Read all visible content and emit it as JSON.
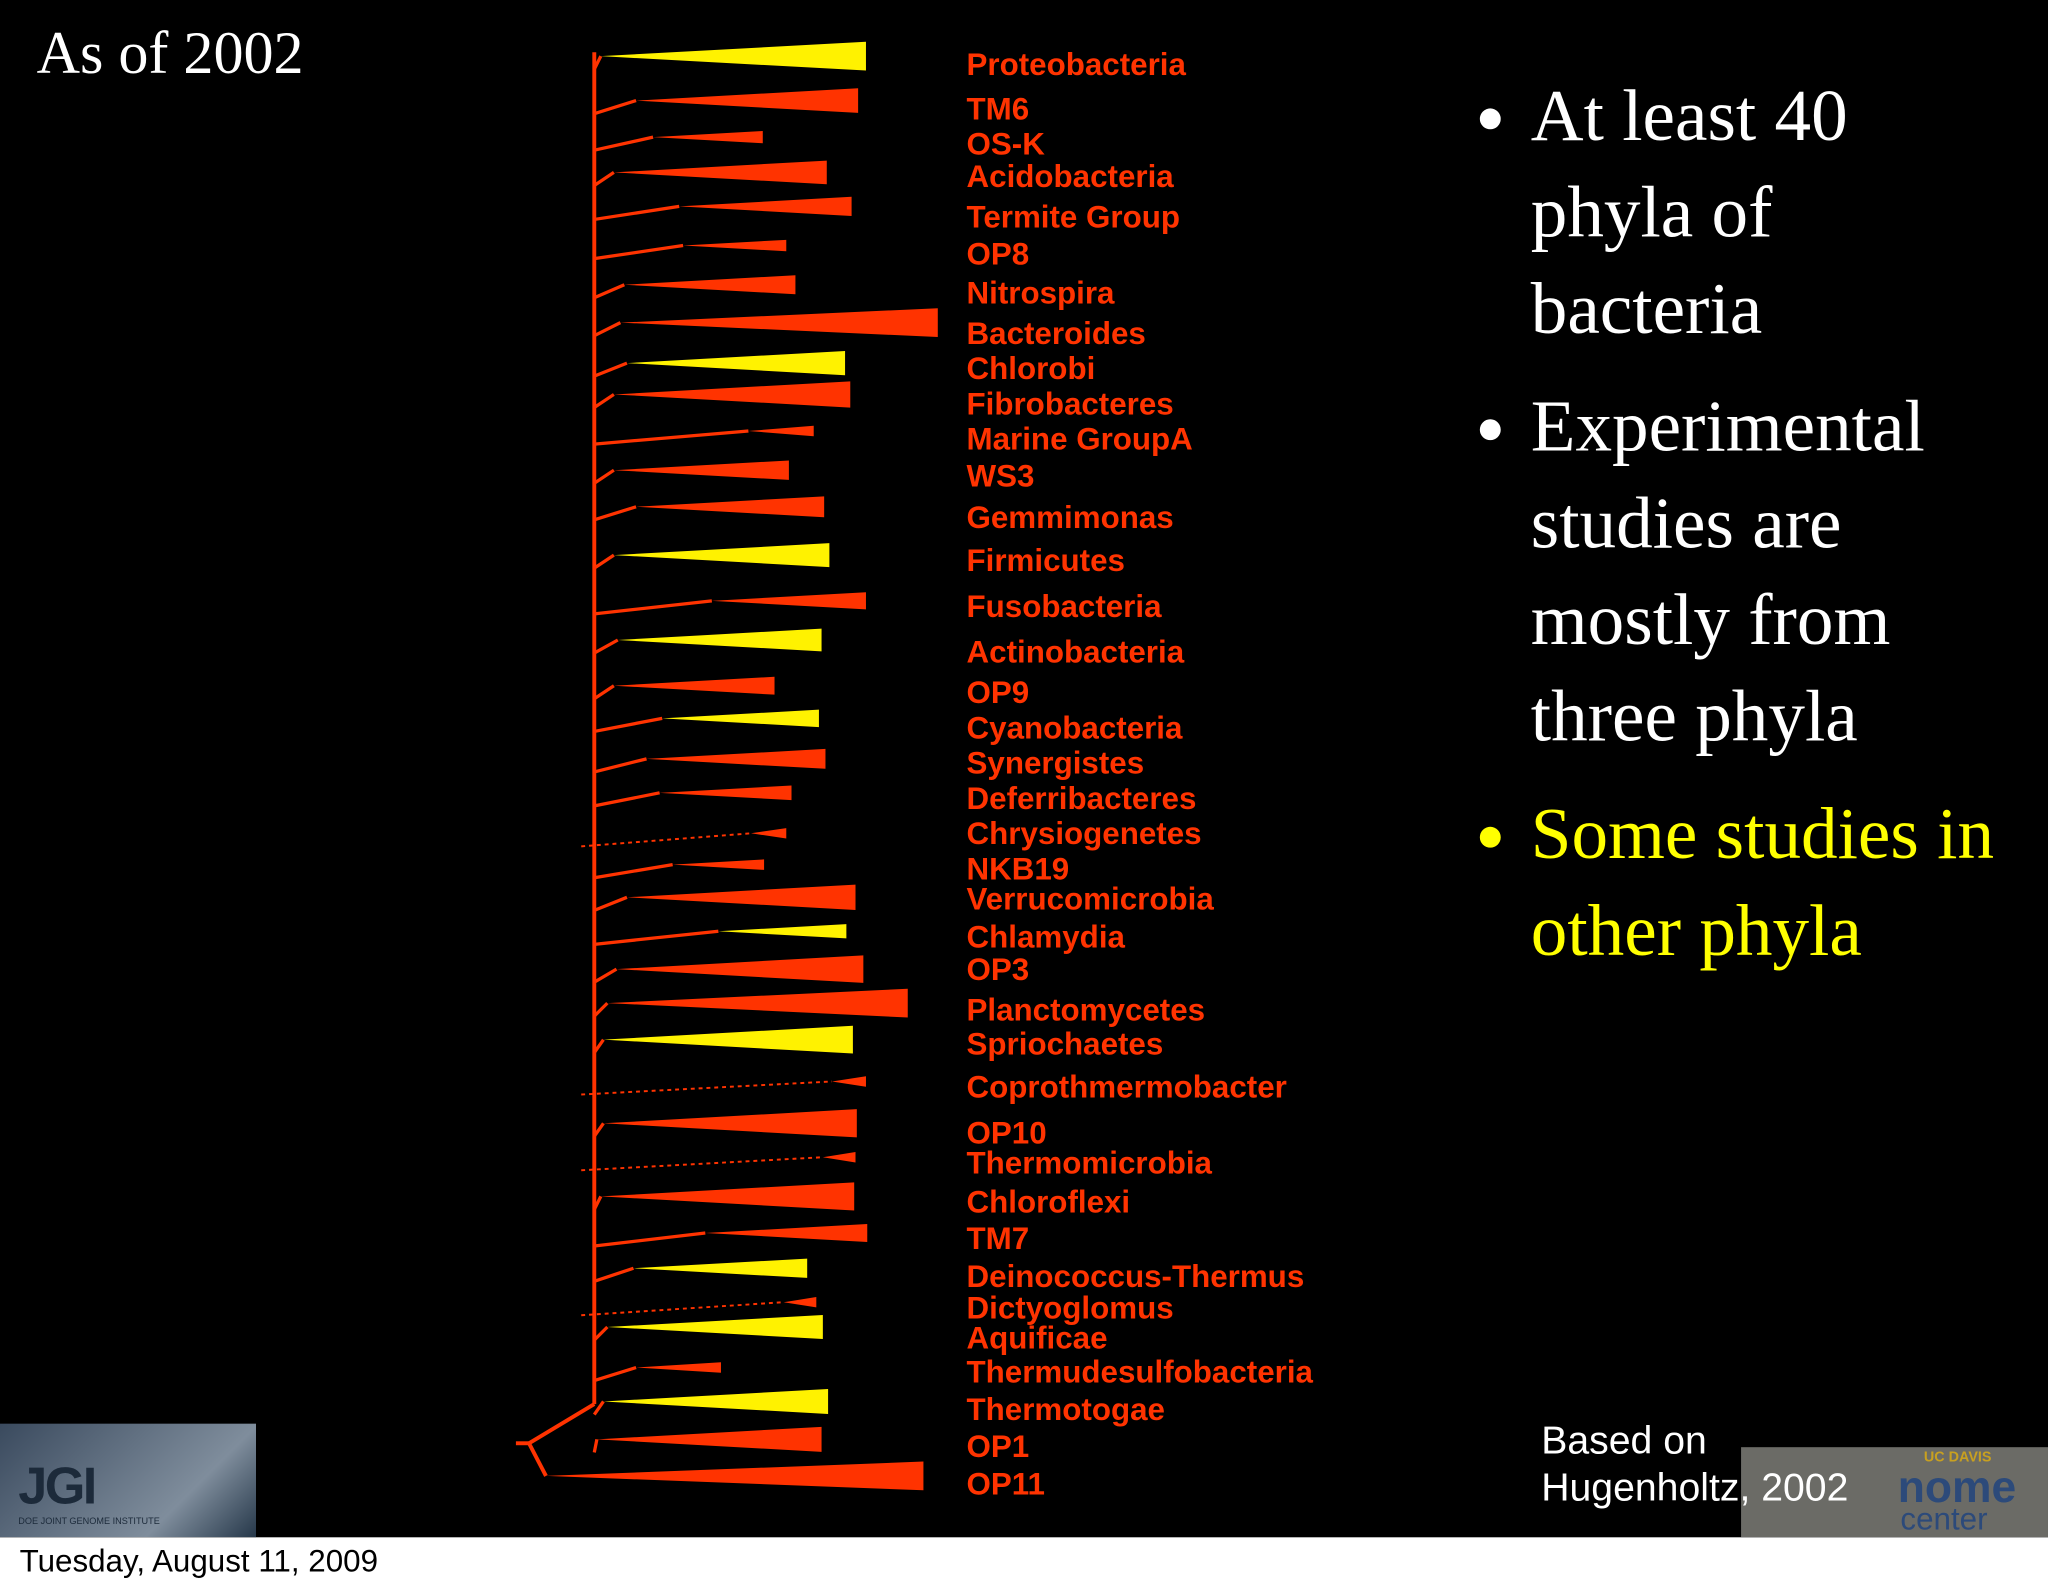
{
  "header": {
    "title": "As of 2002"
  },
  "tree": {
    "taxa": [
      {
        "name": "Proteobacteria",
        "color": "#fff200"
      },
      {
        "name": "TM6",
        "color": "#ff3300"
      },
      {
        "name": "OS-K",
        "color": "#ff3300"
      },
      {
        "name": "Acidobacteria",
        "color": "#ff3300"
      },
      {
        "name": "Termite Group",
        "color": "#ff3300"
      },
      {
        "name": "OP8",
        "color": "#ff3300"
      },
      {
        "name": "Nitrospira",
        "color": "#ff3300"
      },
      {
        "name": "Bacteroides",
        "color": "#ff3300"
      },
      {
        "name": "Chlorobi",
        "color": "#fff200"
      },
      {
        "name": "Fibrobacteres",
        "color": "#ff3300"
      },
      {
        "name": "Marine GroupA",
        "color": "#ff3300"
      },
      {
        "name": "WS3",
        "color": "#ff3300"
      },
      {
        "name": "Gemmimonas",
        "color": "#ff3300"
      },
      {
        "name": "Firmicutes",
        "color": "#fff200"
      },
      {
        "name": "Fusobacteria",
        "color": "#ff3300"
      },
      {
        "name": "Actinobacteria",
        "color": "#fff200"
      },
      {
        "name": "OP9",
        "color": "#ff3300"
      },
      {
        "name": "Cyanobacteria",
        "color": "#fff200"
      },
      {
        "name": "Synergistes",
        "color": "#ff3300"
      },
      {
        "name": "Deferribacteres",
        "color": "#ff3300"
      },
      {
        "name": "Chrysiogenetes",
        "color": "#ff3300"
      },
      {
        "name": "NKB19",
        "color": "#ff3300"
      },
      {
        "name": "Verrucomicrobia",
        "color": "#ff3300"
      },
      {
        "name": "Chlamydia",
        "color": "#fff200"
      },
      {
        "name": "OP3",
        "color": "#ff3300"
      },
      {
        "name": "Planctomycetes",
        "color": "#ff3300"
      },
      {
        "name": "Spriochaetes",
        "color": "#fff200"
      },
      {
        "name": "Coprothmermobacter",
        "color": "#ff3300"
      },
      {
        "name": "OP10",
        "color": "#ff3300"
      },
      {
        "name": "Thermomicrobia",
        "color": "#ff3300"
      },
      {
        "name": "Chloroflexi",
        "color": "#ff3300"
      },
      {
        "name": "TM7",
        "color": "#ff3300"
      },
      {
        "name": "Deinococcus-Thermus",
        "color": "#fff200"
      },
      {
        "name": "Dictyoglomus",
        "color": "#ff3300"
      },
      {
        "name": "Aquificae",
        "color": "#fff200"
      },
      {
        "name": "Thermudesulfobacteria",
        "color": "#ff3300"
      },
      {
        "name": "Thermotogae",
        "color": "#fff200"
      },
      {
        "name": "OP1",
        "color": "#ff3300"
      },
      {
        "name": "OP11",
        "color": "#ff3300"
      }
    ]
  },
  "bullets": [
    {
      "text": "At least 40 phyla of bacteria",
      "color": "#ffffff"
    },
    {
      "text": "Experimental studies are mostly from three phyla",
      "color": "#ffffff"
    },
    {
      "text": "Some studies in other phyla",
      "color": "#ffff00"
    }
  ],
  "citation": {
    "lines": [
      "Based on",
      "Hugenholtz, 2002"
    ]
  },
  "logos": {
    "jgi": "JGI",
    "jgi_sub": "DOE JOINT GENOME INSTITUTE",
    "ucd": "UC DAVIS",
    "genome": "nome",
    "center": "center"
  },
  "footer": {
    "date": "Tuesday, August 11, 2009"
  }
}
